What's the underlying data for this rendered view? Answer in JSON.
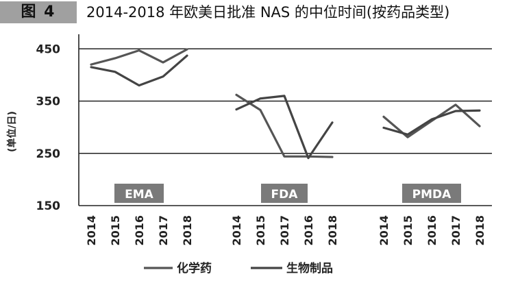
{
  "figure": {
    "label": "图 4",
    "title": "2014-2018 年欧美日批准 NAS 的中位时间(按药品类型)"
  },
  "chart_data": {
    "type": "line",
    "ylabel": "(单位/日)",
    "ylim": [
      150,
      470
    ],
    "yticks": [
      150,
      250,
      350,
      450
    ],
    "grid": true,
    "legend_position": "bottom",
    "groups": [
      {
        "name": "EMA",
        "categories": [
          "2014",
          "2015",
          "2016",
          "2017",
          "2018"
        ]
      },
      {
        "name": "FDA",
        "categories": [
          "2014",
          "2015",
          "2017",
          "2016",
          "2018"
        ]
      },
      {
        "name": "PMDA",
        "categories": [
          "2014",
          "2015",
          "2016",
          "2017",
          "2018"
        ]
      }
    ],
    "series": [
      {
        "name": "化学药",
        "color": "#555555",
        "values": {
          "EMA": [
            420,
            432,
            447,
            424,
            449
          ],
          "FDA": [
            362,
            333,
            244,
            244,
            243
          ],
          "PMDA": [
            320,
            281,
            312,
            343,
            302
          ]
        }
      },
      {
        "name": "生物制品",
        "color": "#444444",
        "values": {
          "EMA": [
            415,
            406,
            380,
            397,
            437
          ],
          "FDA": [
            334,
            355,
            360,
            241,
            309
          ],
          "PMDA": [
            299,
            286,
            315,
            331,
            332
          ]
        }
      }
    ]
  }
}
